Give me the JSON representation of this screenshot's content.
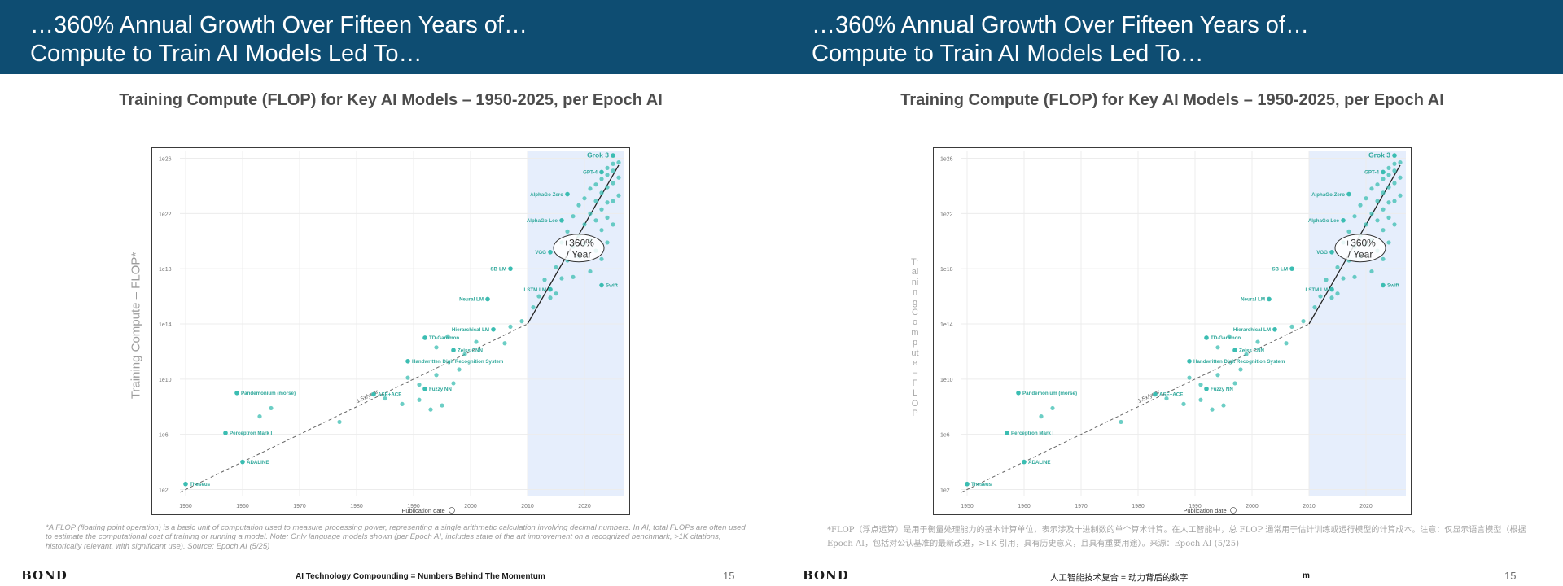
{
  "slides": [
    {
      "header": {
        "line1": "…360% Annual Growth Over Fifteen Years of…",
        "line2": "Compute to Train AI Models Led To…"
      },
      "chart_title": "Training Compute (FLOP) for Key AI Models – 1950-2025, per Epoch AI",
      "y_axis_title": "Training Compute – FLOP*",
      "footnote": "*A FLOP (floating point operation) is a basic unit of computation used to measure processing power, representing a single arithmetic calculation involving decimal numbers. In AI, total FLOPs are often used to estimate the computational cost of training or running a model. Note: Only language models shown (per Epoch AI, includes state of the art improvement on a recognized benchmark, >1K citations, historically relevant, with significant use). Source: Epoch AI (5/25)",
      "footer": {
        "brand": "BOND",
        "center": "AI Technology Compounding = Numbers Behind The Momentum",
        "page": "15"
      }
    },
    {
      "header": {
        "line1": "…360% Annual Growth Over Fifteen Years of…",
        "line2": "Compute to Train AI Models Led To…"
      },
      "chart_title": "Training Compute (FLOP) for Key AI Models – 1950-2025, per Epoch AI",
      "y_axis_title": "Training Compute – FLOP",
      "footnote": "*FLOP（浮点运算）是用于衡量处理能力的基本计算单位，表示涉及十进制数的单个算术计算。在人工智能中，总 FLOP 通常用于估计训练或运行模型的计算成本。注意：仅显示语言模型（根据 Epoch AI，包括对公认基准的最新改进，>1K 引用，具有历史意义，且具有重要用途）。来源：Epoch AI (5/25)",
      "footer": {
        "brand": "BOND",
        "center": "人工智能技术复合 = 动力背后的数字",
        "mark": "m",
        "page": "15"
      }
    }
  ],
  "colors": {
    "banner": "#0e4d72",
    "point": "#3bbdb2",
    "label": "#2fa89b",
    "highlight": "#e6eefc"
  },
  "chart_data": {
    "type": "scatter",
    "title": "Training Compute (FLOP) for Key AI Models – 1950-2025, per Epoch AI",
    "xlabel": "Publication date",
    "ylabel": "Training Compute – FLOP*",
    "x_ticks": [
      "1950",
      "1960",
      "1970",
      "1980",
      "1990",
      "2000",
      "2010",
      "2020"
    ],
    "y_ticks": [
      "1e2",
      "1e6",
      "1e10",
      "1e14",
      "1e18",
      "1e22",
      "1e26"
    ],
    "xlim": [
      1949,
      2027
    ],
    "y_log_exponent_range": [
      1.5,
      26.5
    ],
    "highlight_region": {
      "x": [
        2010,
        2027
      ]
    },
    "trend_pre_2010": {
      "label": "1.5x/year",
      "from": [
        1949,
        1.8
      ],
      "to": [
        2010,
        14
      ]
    },
    "trend_post_2010": {
      "label": "+360% / Year",
      "from": [
        2010,
        14
      ],
      "to": [
        2026,
        25.5
      ]
    },
    "annotation": "+360% / Year",
    "labeled_models": [
      {
        "name": "Theseus",
        "x": 1950,
        "y": 2.4
      },
      {
        "name": "Perceptron Mark I",
        "x": 1957,
        "y": 6.1
      },
      {
        "name": "ADALINE",
        "x": 1960,
        "y": 4.0
      },
      {
        "name": "Pandemonium (morse)",
        "x": 1959,
        "y": 9.0
      },
      {
        "name": "Handwritten Digit Recognition System",
        "x": 1989,
        "y": 11.3
      },
      {
        "name": "ASE+ACE",
        "x": 1983,
        "y": 8.9
      },
      {
        "name": "Fuzzy NN",
        "x": 1992,
        "y": 9.3
      },
      {
        "name": "TD-Gammon",
        "x": 1992,
        "y": 13.0
      },
      {
        "name": "Zeiss CNN",
        "x": 1997,
        "y": 12.1
      },
      {
        "name": "Hierarchical LM",
        "x": 2004,
        "y": 13.6
      },
      {
        "name": "Neural LM",
        "x": 2003,
        "y": 15.8
      },
      {
        "name": "LSTM LM",
        "x": 2014,
        "y": 16.5
      },
      {
        "name": "SB-LM",
        "x": 2007,
        "y": 18.0
      },
      {
        "name": "VGG",
        "x": 2014,
        "y": 19.2
      },
      {
        "name": "Swift",
        "x": 2023,
        "y": 16.8
      },
      {
        "name": "AlphaGo Lee",
        "x": 2016,
        "y": 21.5
      },
      {
        "name": "AlphaGo Zero",
        "x": 2017,
        "y": 23.4
      },
      {
        "name": "GPT-4",
        "x": 2023,
        "y": 25.0
      },
      {
        "name": "Grok 3",
        "x": 2025,
        "y": 26.2
      }
    ],
    "other_points": [
      [
        1963,
        7.3
      ],
      [
        1965,
        7.9
      ],
      [
        1977,
        6.9
      ],
      [
        1989,
        10.1
      ],
      [
        1991,
        9.6
      ],
      [
        1994,
        10.3
      ],
      [
        1985,
        8.6
      ],
      [
        1988,
        8.2
      ],
      [
        1991,
        8.5
      ],
      [
        1993,
        7.8
      ],
      [
        1995,
        8.1
      ],
      [
        1997,
        9.7
      ],
      [
        1998,
        10.7
      ],
      [
        1994,
        12.3
      ],
      [
        1996,
        13.1
      ],
      [
        1999,
        11.8
      ],
      [
        2001,
        12.7
      ],
      [
        2006,
        12.6
      ],
      [
        2007,
        13.8
      ],
      [
        2009,
        14.2
      ],
      [
        2011,
        15.2
      ],
      [
        2012,
        16.0
      ],
      [
        2013,
        17.2
      ],
      [
        2014,
        15.9
      ],
      [
        2015,
        18.1
      ],
      [
        2015,
        16.2
      ],
      [
        2016,
        17.3
      ],
      [
        2016,
        19.9
      ],
      [
        2017,
        18.6
      ],
      [
        2017,
        20.7
      ],
      [
        2018,
        17.4
      ],
      [
        2018,
        19.6
      ],
      [
        2018,
        21.8
      ],
      [
        2019,
        18.9
      ],
      [
        2019,
        20.4
      ],
      [
        2019,
        22.6
      ],
      [
        2020,
        19.8
      ],
      [
        2020,
        21.2
      ],
      [
        2020,
        23.1
      ],
      [
        2021,
        17.8
      ],
      [
        2021,
        20.1
      ],
      [
        2021,
        22.0
      ],
      [
        2021,
        23.8
      ],
      [
        2022,
        19.3
      ],
      [
        2022,
        21.5
      ],
      [
        2022,
        22.9
      ],
      [
        2022,
        24.1
      ],
      [
        2023,
        18.7
      ],
      [
        2023,
        20.8
      ],
      [
        2023,
        22.3
      ],
      [
        2023,
        23.5
      ],
      [
        2023,
        24.5
      ],
      [
        2024,
        19.9
      ],
      [
        2024,
        21.7
      ],
      [
        2024,
        22.8
      ],
      [
        2024,
        23.9
      ],
      [
        2024,
        24.8
      ],
      [
        2024,
        25.3
      ],
      [
        2025,
        21.2
      ],
      [
        2025,
        22.9
      ],
      [
        2025,
        24.2
      ],
      [
        2025,
        25.1
      ],
      [
        2025,
        25.6
      ],
      [
        2026,
        23.3
      ],
      [
        2026,
        24.6
      ],
      [
        2026,
        25.7
      ]
    ]
  }
}
